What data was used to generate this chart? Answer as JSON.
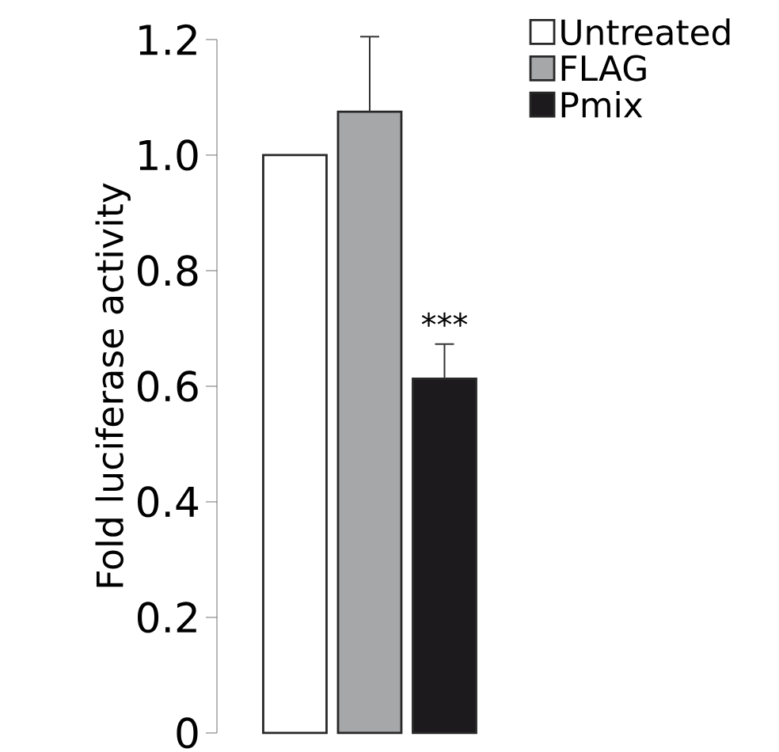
{
  "chart_data": {
    "type": "bar",
    "ylabel": "Fold luciferase activity",
    "categories": [
      null
    ],
    "series": [
      {
        "name": "Untreated",
        "color": "#ffffff",
        "values": [
          1.0
        ],
        "errors": [
          null
        ]
      },
      {
        "name": "FLAG",
        "color": "#a6a7a9",
        "values": [
          1.075
        ],
        "errors": [
          [
            1.075,
            1.205
          ]
        ]
      },
      {
        "name": "Pmix",
        "color": "#1c1a1c",
        "values": [
          0.613
        ],
        "errors": [
          [
            0.613,
            0.673
          ]
        ]
      }
    ],
    "ylim": [
      0,
      1.2
    ],
    "yticks": [
      {
        "value": 0,
        "label": "0"
      },
      {
        "value": 0.2,
        "label": "0.2"
      },
      {
        "value": 0.4,
        "label": "0.4"
      },
      {
        "value": 0.6,
        "label": "0.6"
      },
      {
        "value": 0.8,
        "label": "0.8"
      },
      {
        "value": 1.0,
        "label": "1.0"
      },
      {
        "value": 1.2,
        "label": "1.2"
      }
    ],
    "annotations": [
      "***"
    ],
    "tick_labels": "y",
    "legend": "top right"
  }
}
